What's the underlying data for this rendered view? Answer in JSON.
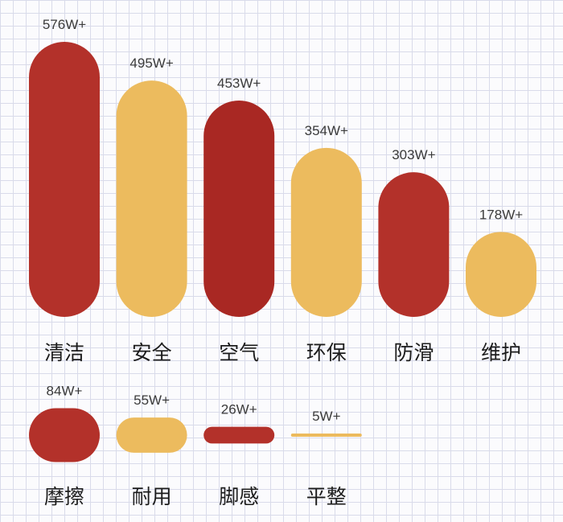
{
  "chart_data": [
    {
      "type": "bar",
      "categories": [
        "清洁",
        "安全",
        "空气",
        "环保",
        "防滑",
        "维护"
      ],
      "values": [
        576,
        495,
        453,
        354,
        303,
        178
      ],
      "value_labels": [
        "576W+",
        "495W+",
        "453W+",
        "354W+",
        "303W+",
        "178W+"
      ],
      "colors": [
        "#b3312a",
        "#ecbb5e",
        "#a92823",
        "#ecbb5e",
        "#b3312a",
        "#ecbb5e"
      ]
    },
    {
      "type": "bar",
      "categories": [
        "摩擦",
        "耐用",
        "脚感",
        "平整"
      ],
      "values": [
        84,
        55,
        26,
        5
      ],
      "value_labels": [
        "84W+",
        "55W+",
        "26W+",
        "5W+"
      ],
      "colors": [
        "#b3312a",
        "#ecbb5e",
        "#b3312a",
        "#ecbb5e"
      ]
    }
  ]
}
